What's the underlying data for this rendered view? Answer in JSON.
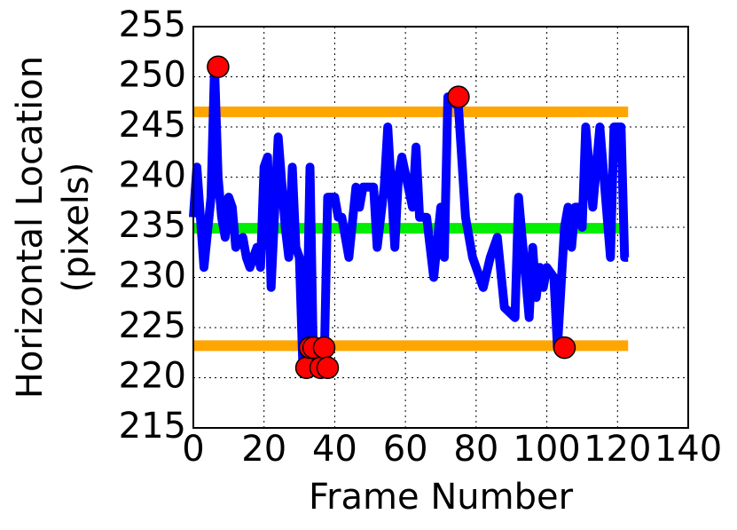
{
  "chart_data": {
    "type": "line",
    "xlabel": "Frame Number",
    "ylabel": [
      "Horizontal Location",
      "(pixels)"
    ],
    "xlim": [
      0,
      140
    ],
    "ylim": [
      215,
      255
    ],
    "xticks": [
      0,
      20,
      40,
      60,
      80,
      100,
      120,
      140
    ],
    "yticks": [
      215,
      220,
      225,
      230,
      235,
      240,
      245,
      250,
      255
    ],
    "grid": true,
    "hlines": [
      {
        "color": "#ffa500",
        "value": 246.5,
        "x": [
          0,
          123
        ]
      },
      {
        "color": "#ffa500",
        "value": 223.2,
        "x": [
          0,
          123
        ]
      },
      {
        "color": "#00ee00",
        "value": 234.9,
        "x": [
          0,
          123
        ]
      }
    ],
    "series": [
      {
        "color": "#0000ff",
        "x": [
          0,
          1,
          2,
          3,
          5,
          6,
          7,
          8,
          9,
          10,
          11,
          12,
          14,
          15,
          16,
          18,
          19,
          20,
          21,
          22,
          24,
          26,
          27,
          28,
          29,
          30,
          31,
          32,
          33,
          34,
          36,
          37,
          38,
          40,
          41,
          42,
          44,
          46,
          47,
          48,
          51,
          52,
          54,
          55,
          57,
          58,
          59,
          62,
          63,
          64,
          66,
          68,
          70,
          71,
          72,
          75,
          77,
          79,
          80,
          82,
          84,
          85,
          86,
          88,
          91,
          92,
          95,
          96,
          97,
          98,
          99,
          100,
          102,
          103,
          105,
          106,
          107,
          108,
          109,
          110,
          111,
          113,
          115,
          118,
          119,
          121,
          122,
          123
        ],
        "values": [
          236,
          241,
          236,
          231,
          238,
          251,
          240,
          236,
          234,
          238,
          237,
          233,
          234,
          232,
          231,
          233,
          231,
          241,
          242,
          229,
          244,
          235,
          232,
          241,
          233,
          232,
          221,
          223,
          241,
          221,
          223,
          221,
          238,
          238,
          236,
          236,
          232,
          239,
          237,
          239,
          239,
          233,
          239,
          245,
          233,
          240,
          242,
          237,
          243,
          236,
          236,
          230,
          237,
          232,
          248,
          247,
          236,
          232,
          231,
          229,
          232,
          233,
          234,
          227,
          226,
          238,
          226,
          233,
          228,
          231,
          229,
          231,
          230,
          223,
          235,
          237,
          233,
          237,
          237,
          235,
          245,
          237,
          245,
          232,
          245,
          245,
          232,
          232
        ]
      }
    ],
    "points": {
      "color": "#ff0000",
      "x": [
        7,
        32,
        33,
        34,
        36,
        37,
        38,
        75,
        105
      ],
      "values": [
        251,
        221,
        223,
        223,
        221,
        223,
        221,
        248,
        223
      ]
    }
  }
}
